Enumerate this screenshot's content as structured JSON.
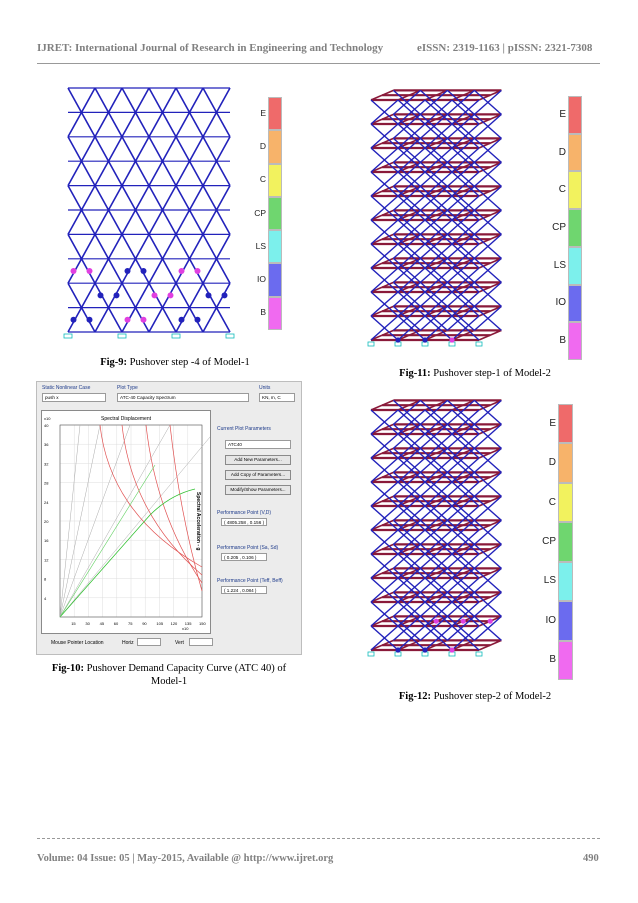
{
  "header": {
    "journal": "IJRET: International Journal of Research in Engineering and Technology",
    "issn": "eISSN: 2319-1163 | pISSN: 2321-7308"
  },
  "colors": {
    "frame_blue": "#2222bb",
    "beam_red": "#8a1a3a",
    "hinge_magenta": "#e040e0",
    "scale": [
      "#ef6a6a",
      "#f7b36a",
      "#f2f25e",
      "#6fd66f",
      "#7cf0ec",
      "#6b6bef",
      "#f06af0"
    ]
  },
  "scale_labels": [
    "E",
    "D",
    "C",
    "CP",
    "LS",
    "IO",
    "B"
  ],
  "figures": {
    "fig9": {
      "label": "Fig-9:",
      "text": " Pushover step -4 of Model-1"
    },
    "fig10": {
      "label": "Fig-10:",
      "text": " Pushover Demand Capacity Curve (ATC 40) of Model-1"
    },
    "fig11": {
      "label": "Fig-11:",
      "text": " Pushover step-1 of Model-2"
    },
    "fig12": {
      "label": "Fig-12:",
      "text": " Pushover step-2 of Model-2"
    }
  },
  "dialog": {
    "static_nonlinear_case_label": "Static Nonlinear Case",
    "case_value": "push x",
    "plot_type_label": "Plot Type",
    "plot_type_value": "ATC-40 Capacity Spectrum",
    "units_label": "Units",
    "units_value": "KN, m, C",
    "plot_title": "Spectral Displacement",
    "y_axis_label": "Spectral Acceleration - g",
    "y_exponent": "x10",
    "x_exponent": "x10",
    "y_ticks": [
      "40",
      "36",
      "32",
      "28",
      "24",
      "20",
      "16",
      "12",
      "8",
      "4"
    ],
    "x_ticks": [
      "15",
      "30",
      "45",
      "60",
      "75",
      "90",
      "105",
      "120",
      "135",
      "150"
    ],
    "current_plot_params_label": "Current Plot Parameters",
    "param_value": "ATC40",
    "buttons": [
      "Add New Parameters...",
      "Add Copy of Parameters...",
      "Modify/Show Parameters..."
    ],
    "pp_vd_label": "Performance Point (V,D)",
    "pp_vd_value": "( 4805.258 , 0.156 )",
    "pp_sasd_label": "Performance Point (Sa, Sd)",
    "pp_sasd_value": "( 0.205 , 0.106 )",
    "pp_teff_label": "Performance Point (Teff, Beff)",
    "pp_teff_value": "( 1.224 , 0.084 )",
    "mouse_location_label": "Mouse Pointer Location",
    "horiz_label": "Horiz",
    "vert_label": "Vert"
  },
  "footer": {
    "text": "Volume: 04 Issue: 05 | May-2015, Available @ ",
    "url": "http://www.ijret.org",
    "page": "490"
  }
}
